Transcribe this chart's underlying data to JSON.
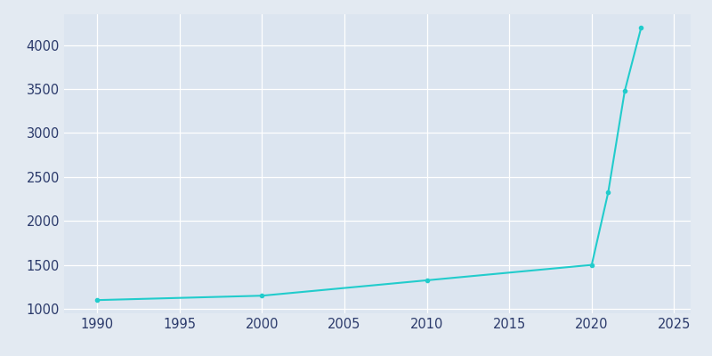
{
  "years": [
    1990,
    2000,
    2010,
    2020,
    2021,
    2022,
    2023
  ],
  "population": [
    1100,
    1150,
    1325,
    1500,
    2325,
    3475,
    4200
  ],
  "line_color": "#22CCCC",
  "marker": "o",
  "marker_size": 3,
  "line_width": 1.5,
  "bg_color": "#E3EAF2",
  "plot_bg_color": "#DCE5F0",
  "grid_color": "#FFFFFF",
  "tick_label_color": "#2B3A6B",
  "tick_fontsize": 10.5,
  "xlim": [
    1988,
    2026
  ],
  "ylim": [
    950,
    4350
  ],
  "xticks": [
    1990,
    1995,
    2000,
    2005,
    2010,
    2015,
    2020,
    2025
  ],
  "yticks": [
    1000,
    1500,
    2000,
    2500,
    3000,
    3500,
    4000
  ]
}
